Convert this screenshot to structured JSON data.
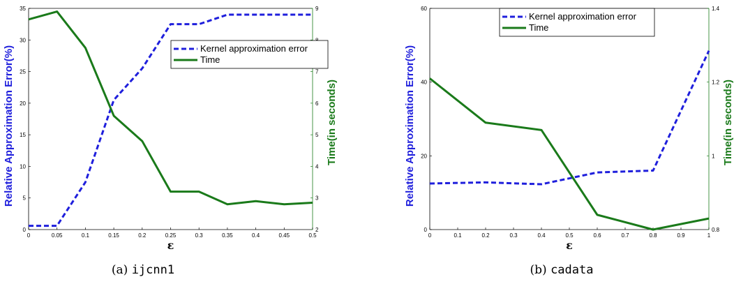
{
  "colors": {
    "error": "#1f1fdc",
    "time": "#1a7a1a",
    "axis": "#000000",
    "green_axis": "#1a7a1a"
  },
  "chart_data": [
    {
      "type": "line",
      "caption_prefix": "(a)",
      "caption_name": "ijcnn1",
      "xlabel": "ε",
      "ylabel_left": "Relative Approximation Error(%)",
      "ylabel_right": "Time(in seconds)",
      "xlim": [
        0,
        0.5
      ],
      "ylim_left": [
        0,
        35
      ],
      "ylim_right": [
        2,
        9
      ],
      "xticks": [
        "0",
        "0.05",
        "0.1",
        "0.15",
        "0.2",
        "0.25",
        "0.3",
        "0.35",
        "0.4",
        "0.45",
        "0.5"
      ],
      "yticks_left": [
        "0",
        "5",
        "10",
        "15",
        "20",
        "25",
        "30",
        "35"
      ],
      "yticks_right": [
        "2",
        "3",
        "4",
        "5",
        "6",
        "7",
        "8",
        "9"
      ],
      "legend_position": "right",
      "series": [
        {
          "name": "Kernel approximation error",
          "axis": "left",
          "style": "dashed",
          "x": [
            0,
            0.05,
            0.1,
            0.15,
            0.2,
            0.25,
            0.3,
            0.35,
            0.4,
            0.45,
            0.5
          ],
          "values": [
            0.6,
            0.6,
            7.5,
            20.5,
            25.5,
            32.5,
            32.5,
            34,
            34,
            34,
            34
          ]
        },
        {
          "name": "Time",
          "axis": "right",
          "style": "solid",
          "x": [
            0,
            0.05,
            0.1,
            0.15,
            0.2,
            0.25,
            0.3,
            0.35,
            0.4,
            0.45,
            0.5
          ],
          "values": [
            8.65,
            8.9,
            7.75,
            5.6,
            4.8,
            3.2,
            3.2,
            2.8,
            2.9,
            2.8,
            2.85
          ]
        }
      ]
    },
    {
      "type": "line",
      "caption_prefix": "(b)",
      "caption_name": "cadata",
      "xlabel": "ε",
      "ylabel_left": "Relative Approximation Error(%)",
      "ylabel_right": "Time(in seconds)",
      "xlim": [
        0,
        1
      ],
      "ylim_left": [
        0,
        60
      ],
      "ylim_right": [
        0.8,
        1.4
      ],
      "xticks": [
        "0",
        "0.1",
        "0.2",
        "0.3",
        "0.4",
        "0.5",
        "0.6",
        "0.7",
        "0.8",
        "0.9",
        "1"
      ],
      "yticks_left": [
        "0",
        "20",
        "40",
        "60"
      ],
      "yticks_right": [
        "0.8",
        "1",
        "1.2",
        "1.4"
      ],
      "legend_position": "top",
      "series": [
        {
          "name": "Kernel approximation error",
          "axis": "left",
          "style": "dashed",
          "x": [
            0,
            0.2,
            0.4,
            0.6,
            0.8,
            1.0
          ],
          "values": [
            12.5,
            12.8,
            12.3,
            15.5,
            16,
            48.5
          ]
        },
        {
          "name": "Time",
          "axis": "right",
          "style": "solid",
          "x": [
            0,
            0.2,
            0.4,
            0.6,
            0.8,
            1.0
          ],
          "values": [
            1.21,
            1.09,
            1.07,
            0.84,
            0.8,
            0.83
          ]
        }
      ]
    }
  ]
}
